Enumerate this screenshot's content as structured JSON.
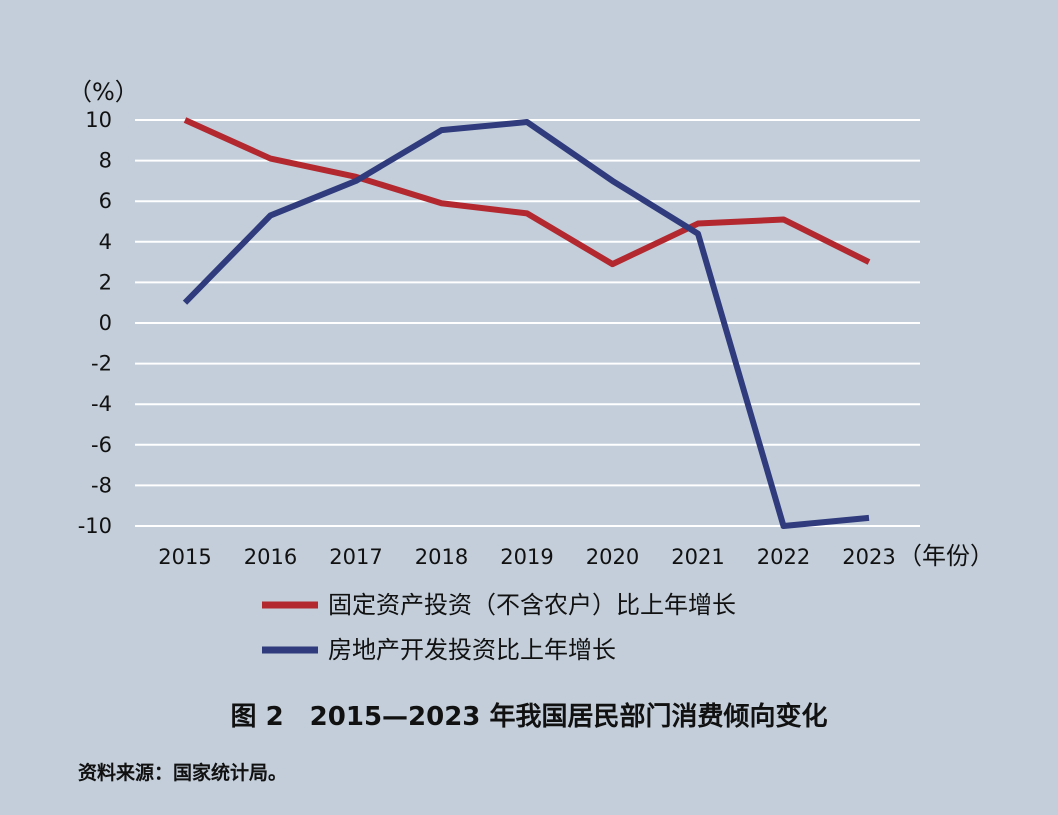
{
  "chart_data": {
    "type": "line",
    "title": "图 2　2015—2023 年我国居民部门消费倾向变化",
    "source": "资料来源：国家统计局。",
    "ylabel": "（%）",
    "xlabel": "（年份）",
    "categories": [
      "2015",
      "2016",
      "2017",
      "2018",
      "2019",
      "2020",
      "2021",
      "2022",
      "2023"
    ],
    "y_ticks": [
      10,
      8,
      6,
      4,
      2,
      0,
      -2,
      -4,
      -6,
      -8,
      -10
    ],
    "ylim": [
      -10,
      10
    ],
    "grid": true,
    "legend_position": "bottom",
    "series": [
      {
        "name": "固定资产投资（不含农户）比上年增长",
        "color": "#b3282f",
        "values": [
          10.0,
          8.1,
          7.2,
          5.9,
          5.4,
          2.9,
          4.9,
          5.1,
          3.0
        ]
      },
      {
        "name": "房地产开发投资比上年增长",
        "color": "#2f3b7c",
        "values": [
          1.0,
          5.3,
          7.0,
          9.5,
          9.9,
          7.0,
          4.4,
          -10.0,
          -9.6
        ]
      }
    ]
  }
}
